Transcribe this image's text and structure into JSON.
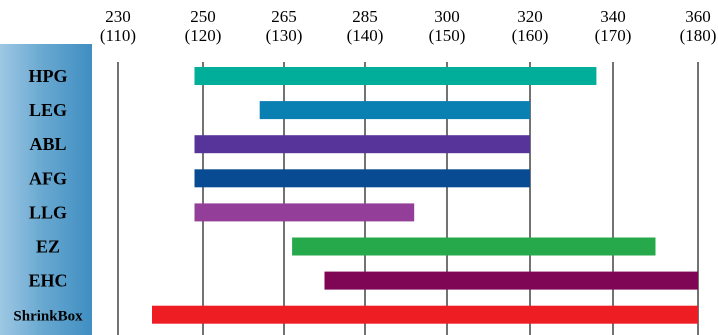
{
  "chart_data": {
    "type": "bar",
    "orientation": "horizontal",
    "bar_style": "range",
    "title": "",
    "xlabel": "",
    "ylabel": "",
    "ticks": [
      {
        "primary": "230",
        "secondary": "(110)",
        "value": 110
      },
      {
        "primary": "250",
        "secondary": "(120)",
        "value": 120
      },
      {
        "primary": "265",
        "secondary": "(130)",
        "value": 130
      },
      {
        "primary": "285",
        "secondary": "(140)",
        "value": 140
      },
      {
        "primary": "300",
        "secondary": "(150)",
        "value": 150
      },
      {
        "primary": "320",
        "secondary": "(160)",
        "value": 160
      },
      {
        "primary": "340",
        "secondary": "(170)",
        "value": 170
      },
      {
        "primary": "360",
        "secondary": "(180)",
        "value": 180
      }
    ],
    "xlim": [
      110,
      180
    ],
    "axis_position": "top",
    "grid": true,
    "categories": [
      "HPG",
      "LEG",
      "ABL",
      "AFG",
      "LLG",
      "EZ",
      "EHC",
      "ShrinkBox"
    ],
    "ranges": [
      {
        "category": "HPG",
        "start": 119,
        "end": 168,
        "color": "#00ae9a"
      },
      {
        "category": "LEG",
        "start": 127,
        "end": 160,
        "color": "#0a7fb1"
      },
      {
        "category": "ABL",
        "start": 119,
        "end": 160,
        "color": "#57349a"
      },
      {
        "category": "AFG",
        "start": 119,
        "end": 160,
        "color": "#084b92"
      },
      {
        "category": "LLG",
        "start": 119,
        "end": 146,
        "color": "#933f99"
      },
      {
        "category": "EZ",
        "start": 131,
        "end": 175,
        "color": "#26a94a"
      },
      {
        "category": "EHC",
        "start": 135,
        "end": 180,
        "color": "#7e0654"
      },
      {
        "category": "ShrinkBox",
        "start": 114,
        "end": 180,
        "color": "#ee1d24"
      }
    ],
    "label_panel_color": "#6aa9d1"
  }
}
